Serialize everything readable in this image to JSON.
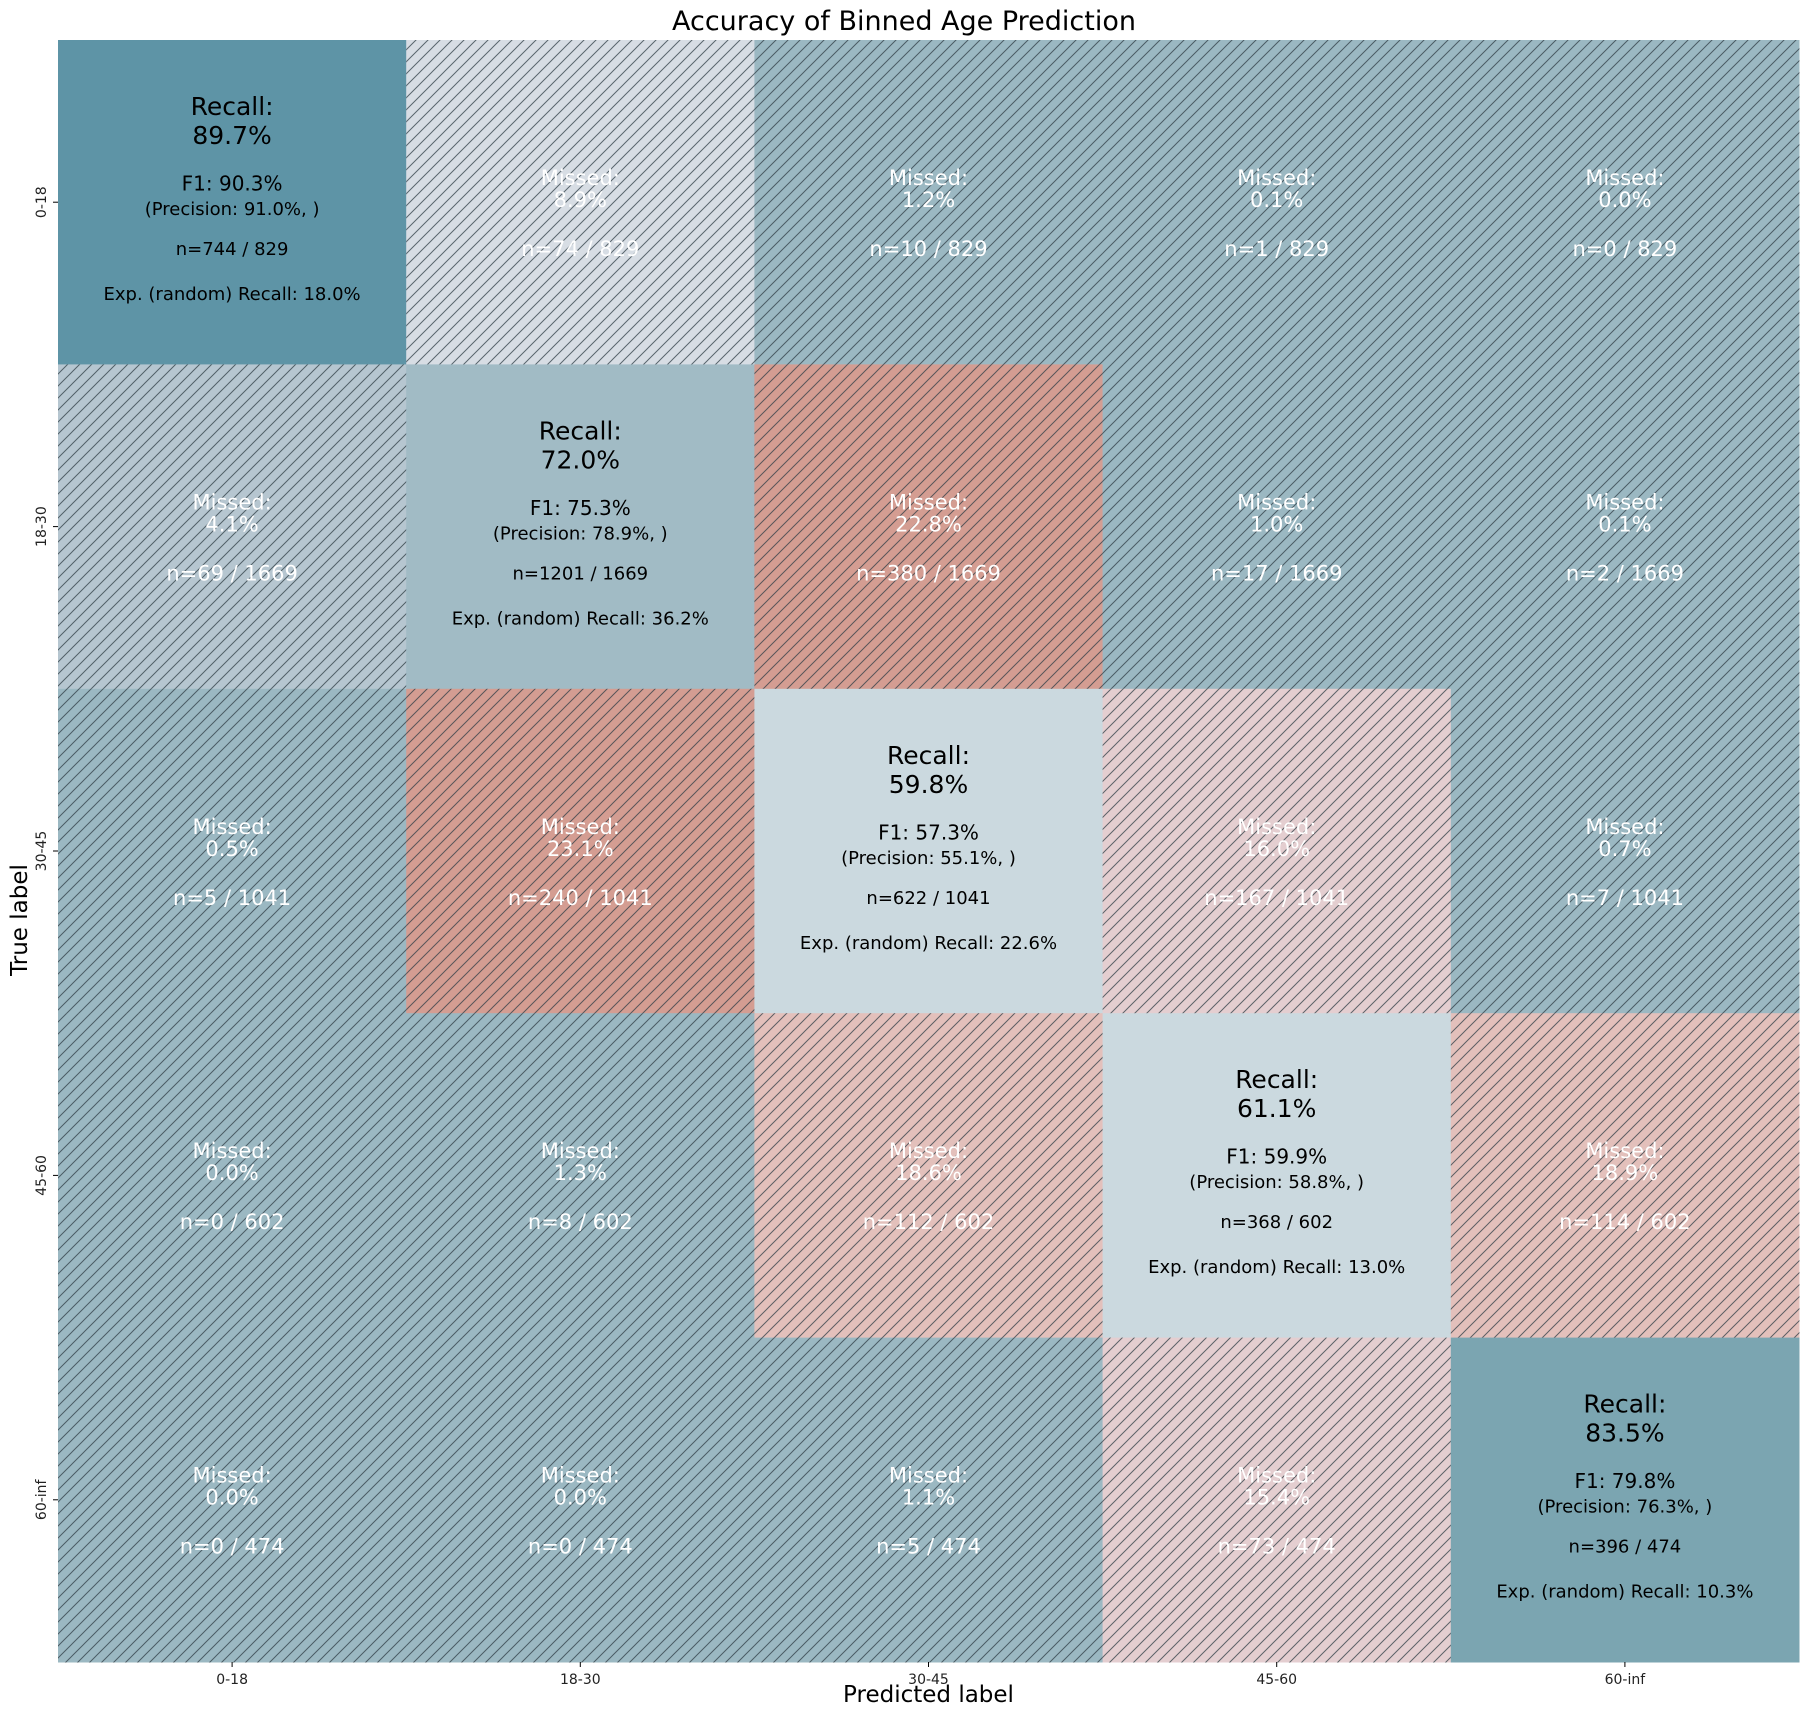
{
  "chart_data": {
    "type": "heatmap",
    "title": "Accuracy of Binned Age Prediction",
    "xlabel": "Predicted label",
    "ylabel": "True label",
    "x_categories": [
      "0-18",
      "18-30",
      "30-45",
      "45-60",
      "60-inf"
    ],
    "y_categories": [
      "0-18",
      "18-30",
      "30-45",
      "45-60",
      "60-inf"
    ],
    "row_totals": [
      829,
      1669,
      1041,
      602,
      474
    ],
    "counts": [
      [
        744,
        74,
        10,
        1,
        0
      ],
      [
        69,
        1201,
        380,
        17,
        2
      ],
      [
        5,
        240,
        622,
        167,
        7
      ],
      [
        0,
        8,
        112,
        368,
        114
      ],
      [
        0,
        0,
        5,
        73,
        396
      ]
    ],
    "percent": [
      [
        "89.7%",
        "8.9%",
        "1.2%",
        "0.1%",
        "0.0%"
      ],
      [
        "4.1%",
        "72.0%",
        "22.8%",
        "1.0%",
        "0.1%"
      ],
      [
        "0.5%",
        "23.1%",
        "59.8%",
        "16.0%",
        "0.7%"
      ],
      [
        "0.0%",
        "1.3%",
        "18.6%",
        "61.1%",
        "18.9%"
      ],
      [
        "0.0%",
        "0.0%",
        "1.1%",
        "15.4%",
        "83.5%"
      ]
    ],
    "cells": [
      [
        {
          "type": "diag",
          "l1": "Recall:",
          "l2": "89.7%",
          "l3": "F1: 90.3%",
          "l4": "(Precision: 91.0%, )",
          "l5": "n=744 / 829",
          "l6": "Exp. (random) Recall: 18.0%"
        },
        {
          "type": "off",
          "l1": "Missed:",
          "l2": "8.9%",
          "l3": "n=74 / 829"
        },
        {
          "type": "off",
          "l1": "Missed:",
          "l2": "1.2%",
          "l3": "n=10 / 829"
        },
        {
          "type": "off",
          "l1": "Missed:",
          "l2": "0.1%",
          "l3": "n=1 / 829"
        },
        {
          "type": "off",
          "l1": "Missed:",
          "l2": "0.0%",
          "l3": "n=0 / 829"
        }
      ],
      [
        {
          "type": "off",
          "l1": "Missed:",
          "l2": "4.1%",
          "l3": "n=69 / 1669"
        },
        {
          "type": "diag",
          "l1": "Recall:",
          "l2": "72.0%",
          "l3": "F1: 75.3%",
          "l4": "(Precision: 78.9%, )",
          "l5": "n=1201 / 1669",
          "l6": "Exp. (random) Recall: 36.2%"
        },
        {
          "type": "off",
          "l1": "Missed:",
          "l2": "22.8%",
          "l3": "n=380 / 1669"
        },
        {
          "type": "off",
          "l1": "Missed:",
          "l2": "1.0%",
          "l3": "n=17 / 1669"
        },
        {
          "type": "off",
          "l1": "Missed:",
          "l2": "0.1%",
          "l3": "n=2 / 1669"
        }
      ],
      [
        {
          "type": "off",
          "l1": "Missed:",
          "l2": "0.5%",
          "l3": "n=5 / 1041"
        },
        {
          "type": "off",
          "l1": "Missed:",
          "l2": "23.1%",
          "l3": "n=240 / 1041"
        },
        {
          "type": "diag",
          "l1": "Recall:",
          "l2": "59.8%",
          "l3": "F1: 57.3%",
          "l4": "(Precision: 55.1%, )",
          "l5": "n=622 / 1041",
          "l6": "Exp. (random) Recall: 22.6%"
        },
        {
          "type": "off",
          "l1": "Missed:",
          "l2": "16.0%",
          "l3": "n=167 / 1041"
        },
        {
          "type": "off",
          "l1": "Missed:",
          "l2": "0.7%",
          "l3": "n=7 / 1041"
        }
      ],
      [
        {
          "type": "off",
          "l1": "Missed:",
          "l2": "0.0%",
          "l3": "n=0 / 602"
        },
        {
          "type": "off",
          "l1": "Missed:",
          "l2": "1.3%",
          "l3": "n=8 / 602"
        },
        {
          "type": "off",
          "l1": "Missed:",
          "l2": "18.6%",
          "l3": "n=112 / 602"
        },
        {
          "type": "diag",
          "l1": "Recall:",
          "l2": "61.1%",
          "l3": "F1: 59.9%",
          "l4": "(Precision: 58.8%, )",
          "l5": "n=368 / 602",
          "l6": "Exp. (random) Recall: 13.0%"
        },
        {
          "type": "off",
          "l1": "Missed:",
          "l2": "18.9%",
          "l3": "n=114 / 602"
        }
      ],
      [
        {
          "type": "off",
          "l1": "Missed:",
          "l2": "0.0%",
          "l3": "n=0 / 474"
        },
        {
          "type": "off",
          "l1": "Missed:",
          "l2": "0.0%",
          "l3": "n=0 / 474"
        },
        {
          "type": "off",
          "l1": "Missed:",
          "l2": "1.1%",
          "l3": "n=5 / 474"
        },
        {
          "type": "off",
          "l1": "Missed:",
          "l2": "15.4%",
          "l3": "n=73 / 474"
        },
        {
          "type": "diag",
          "l1": "Recall:",
          "l2": "83.5%",
          "l3": "F1: 79.8%",
          "l4": "(Precision: 76.3%, )",
          "l5": "n=396 / 474",
          "l6": "Exp. (random) Recall: 10.3%"
        }
      ]
    ],
    "grid": false,
    "legend": "none"
  },
  "colors": {
    "fills": [
      [
        "#5e94a6",
        "#d7dde4",
        "#9bb8c2",
        "#9bb8c2",
        "#9bb8c2"
      ],
      [
        "#b6c6d0",
        "#a1bbc5",
        "#d49d92",
        "#9bb8c2",
        "#9bb8c2"
      ],
      [
        "#9bb8c2",
        "#d49d92",
        "#cbd9df",
        "#e4ced0",
        "#9bb8c2"
      ],
      [
        "#9bb8c2",
        "#9bb8c2",
        "#e3c0bb",
        "#cbd9df",
        "#e3c0bb"
      ],
      [
        "#9bb8c2",
        "#9bb8c2",
        "#9bb8c2",
        "#e4ced0",
        "#7ba5b1"
      ]
    ],
    "hatch_stroke": "#2e3d45",
    "text_dark": "#000000",
    "text_light": "#ffffff"
  }
}
